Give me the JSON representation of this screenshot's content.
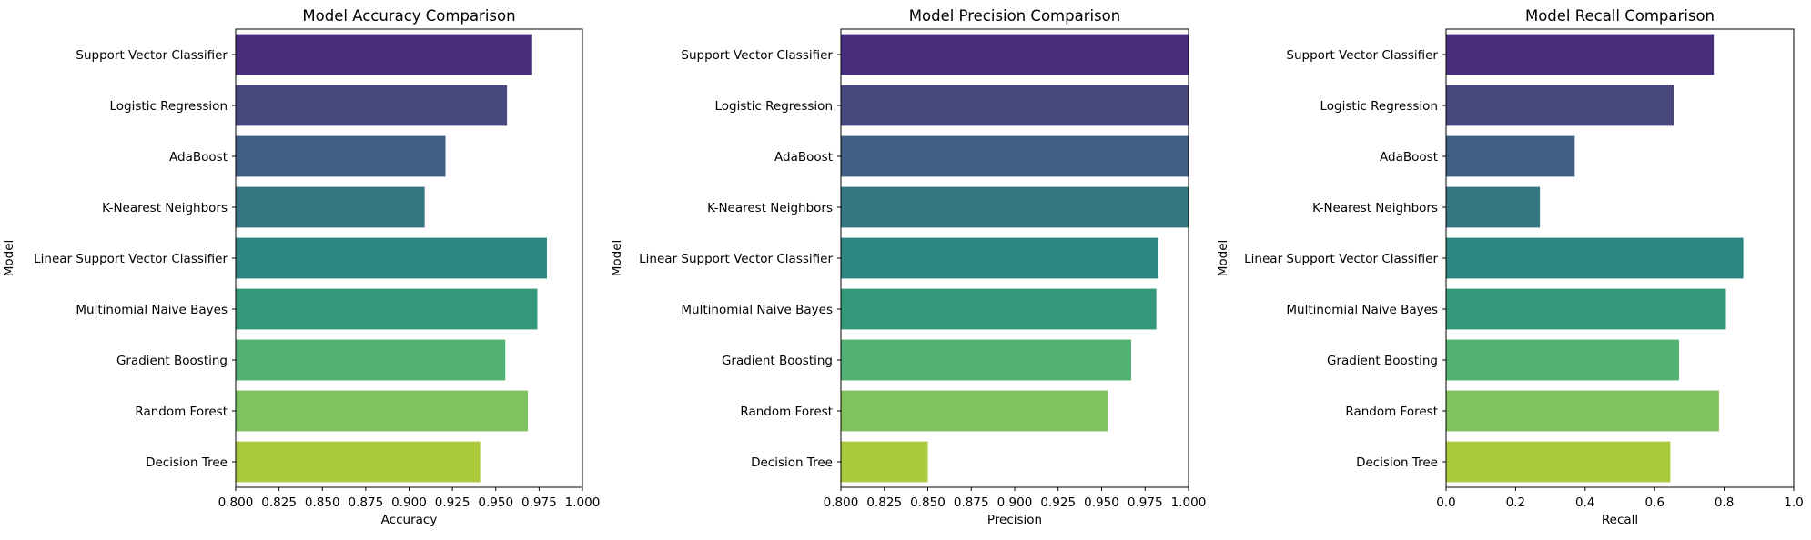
{
  "chart_data": [
    {
      "type": "bar",
      "orientation": "horizontal",
      "title": "Model Accuracy Comparison",
      "xlabel": "Accuracy",
      "ylabel": "Model",
      "xlim": [
        0.8,
        1.0
      ],
      "xticks": [
        "0.800",
        "0.825",
        "0.850",
        "0.875",
        "0.900",
        "0.925",
        "0.950",
        "0.975",
        "1.000"
      ],
      "categories": [
        "Support Vector Classifier",
        "Logistic Regression",
        "AdaBoost",
        "K-Nearest Neighbors",
        "Linear Support Vector Classifier",
        "Multinomial Naive Bayes",
        "Gradient Boosting",
        "Random Forest",
        "Decision Tree"
      ],
      "values": [
        0.971,
        0.9565,
        0.921,
        0.909,
        0.9795,
        0.974,
        0.9555,
        0.9685,
        0.941
      ],
      "grid": false
    },
    {
      "type": "bar",
      "orientation": "horizontal",
      "title": "Model Precision Comparison",
      "xlabel": "Precision",
      "ylabel": "Model",
      "xlim": [
        0.8,
        1.0
      ],
      "xticks": [
        "0.800",
        "0.825",
        "0.850",
        "0.875",
        "0.900",
        "0.925",
        "0.950",
        "0.975",
        "1.000"
      ],
      "categories": [
        "Support Vector Classifier",
        "Logistic Regression",
        "AdaBoost",
        "K-Nearest Neighbors",
        "Linear Support Vector Classifier",
        "Multinomial Naive Bayes",
        "Gradient Boosting",
        "Random Forest",
        "Decision Tree"
      ],
      "values": [
        1.0,
        1.0,
        1.0,
        1.0,
        0.9825,
        0.9815,
        0.967,
        0.9535,
        0.85
      ],
      "grid": false
    },
    {
      "type": "bar",
      "orientation": "horizontal",
      "title": "Model Recall Comparison",
      "xlabel": "Recall",
      "ylabel": "Model",
      "xlim": [
        0.0,
        1.0
      ],
      "xticks": [
        "0.0",
        "0.2",
        "0.4",
        "0.6",
        "0.8",
        "1.0"
      ],
      "categories": [
        "Support Vector Classifier",
        "Logistic Regression",
        "AdaBoost",
        "K-Nearest Neighbors",
        "Linear Support Vector Classifier",
        "Multinomial Naive Bayes",
        "Gradient Boosting",
        "Random Forest",
        "Decision Tree"
      ],
      "values": [
        0.77,
        0.655,
        0.37,
        0.27,
        0.855,
        0.805,
        0.67,
        0.785,
        0.645
      ],
      "grid": false
    }
  ],
  "colors": [
    "#472d7b",
    "#48487f",
    "#3e5f83",
    "#357682",
    "#2d8580",
    "#33997a",
    "#52b274",
    "#7ec35e",
    "#abc93d"
  ]
}
